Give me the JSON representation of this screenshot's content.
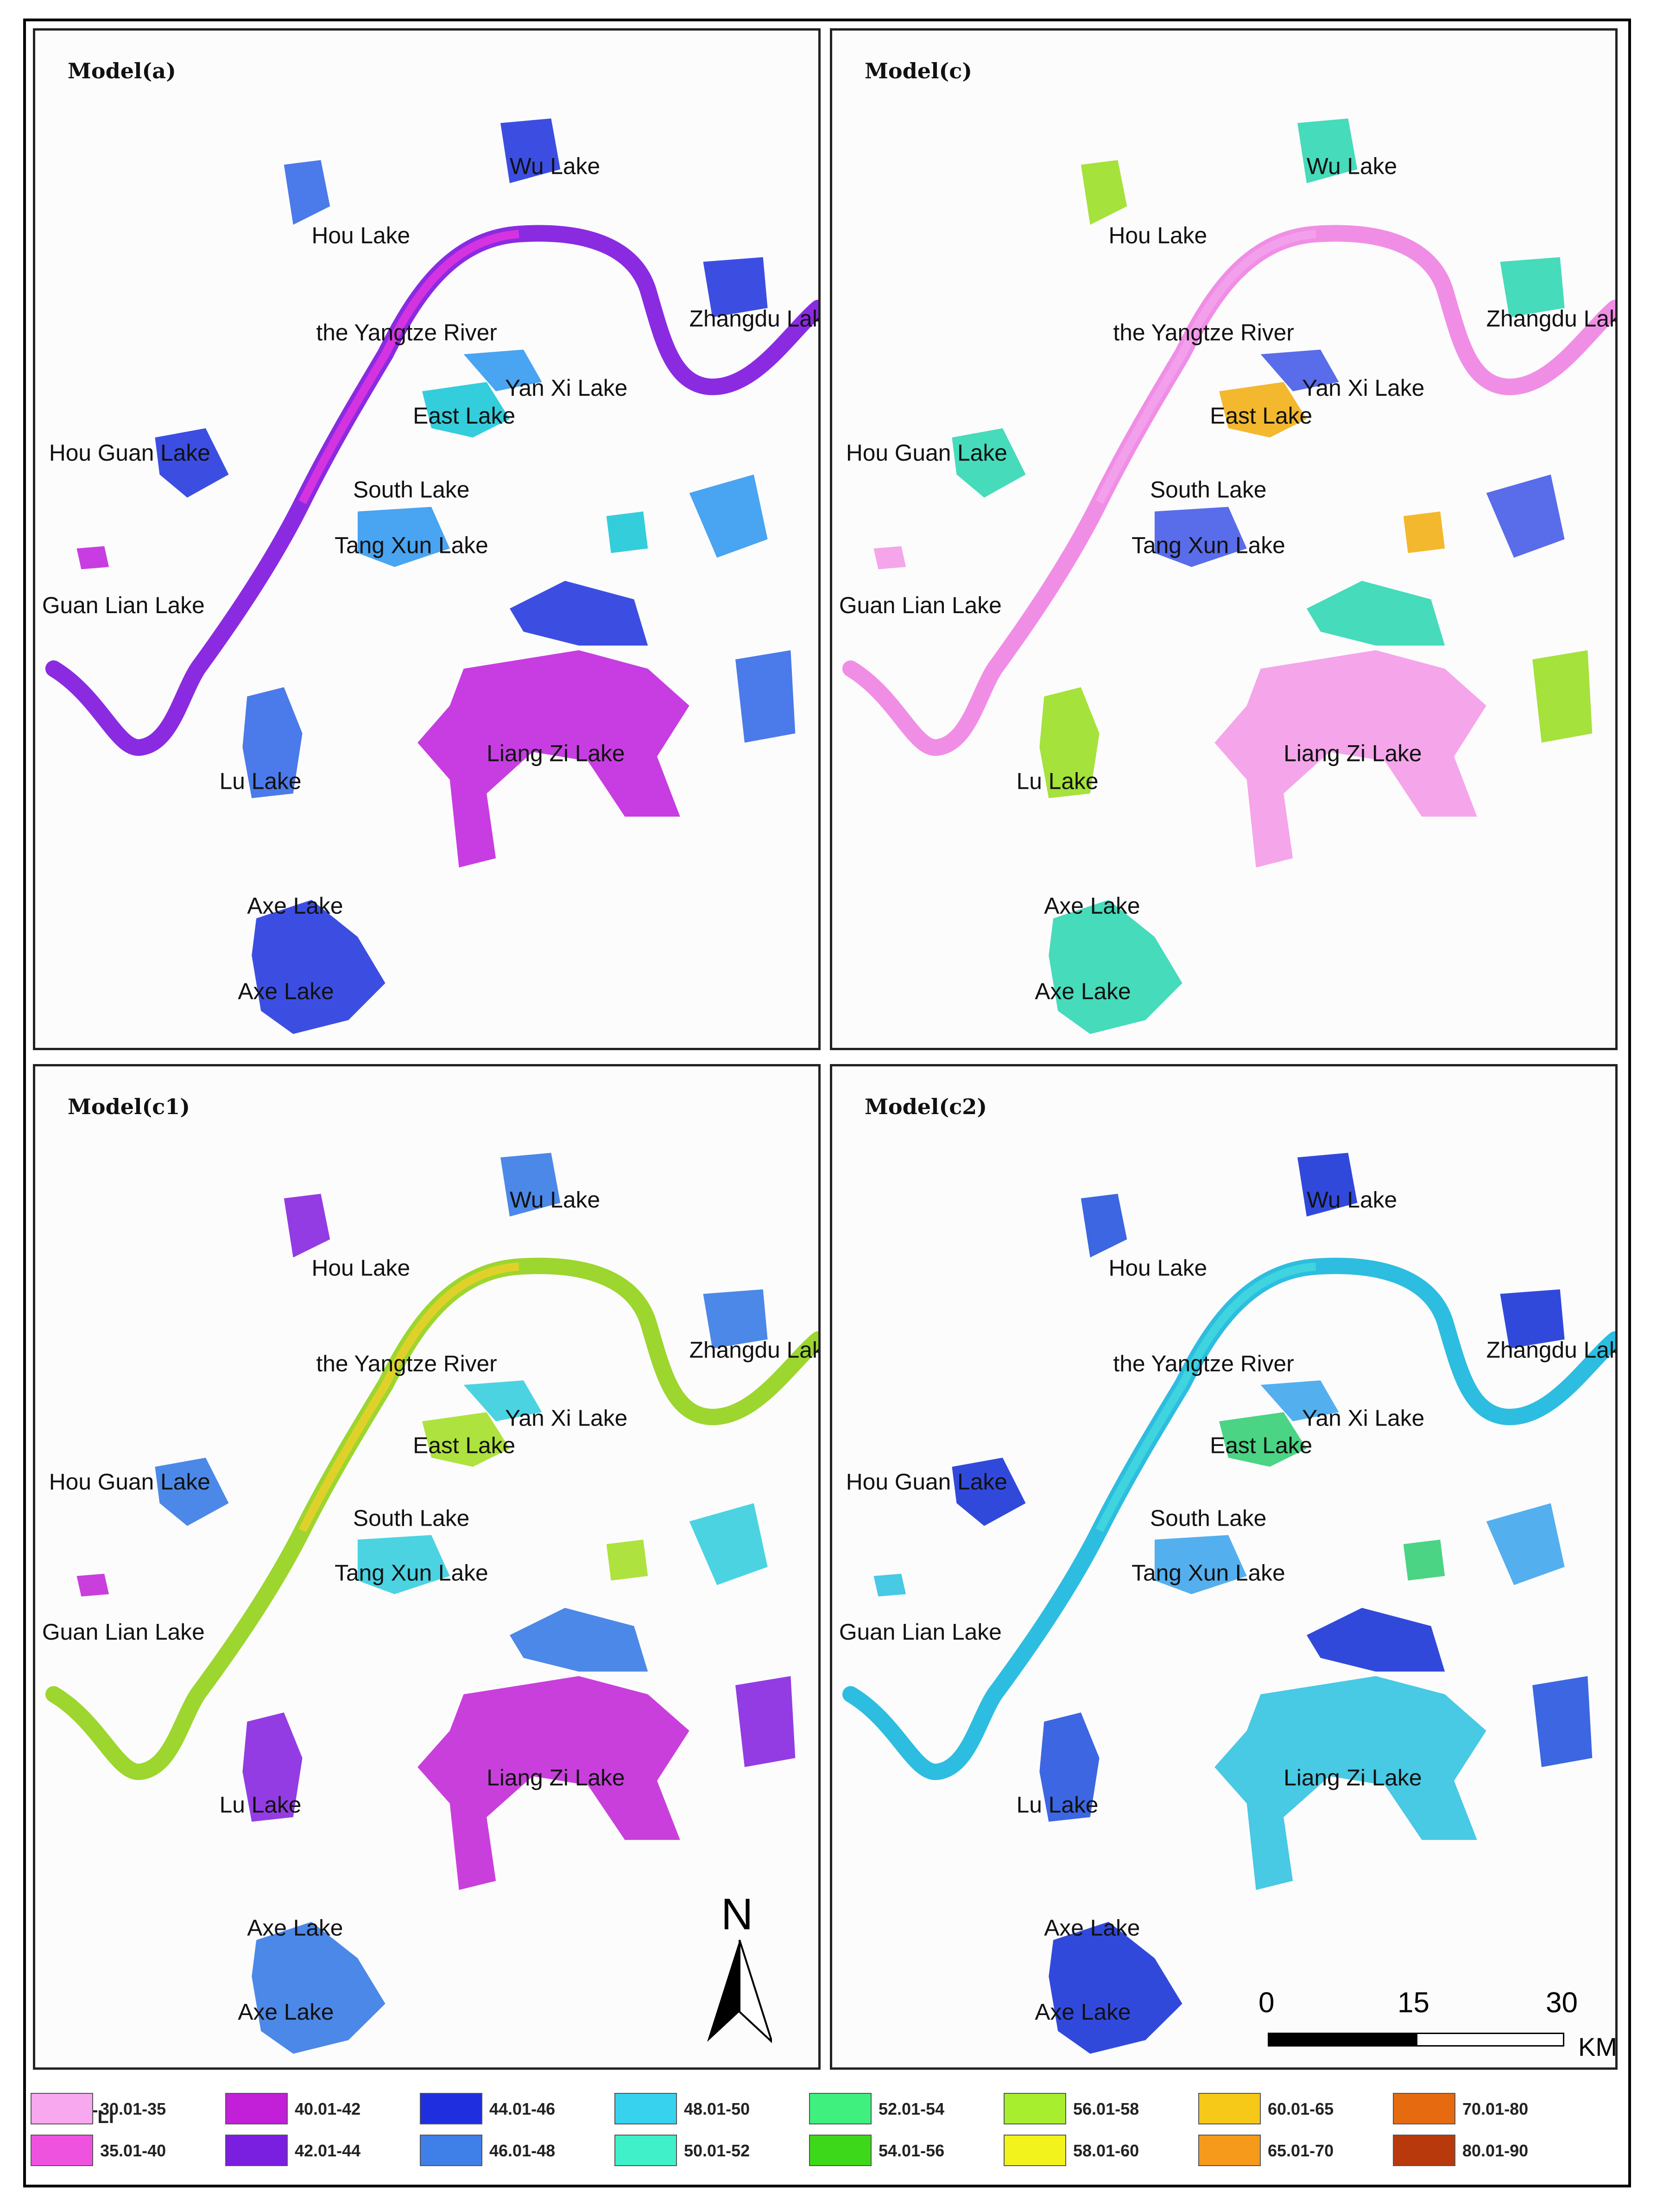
{
  "panels": [
    {
      "title": "Model(a)",
      "palette": {
        "river": "#8a2be2",
        "river2": "#d633e0",
        "lakeA": "#2b3fe0",
        "lakeB": "#3c6fe8",
        "lakeC": "#c22ce0",
        "lakeD": "#23c9d9",
        "lakeE": "#3a9cf0"
      }
    },
    {
      "title": "Model(c)",
      "palette": {
        "river": "#f08ee6",
        "river2": "#f3a0ec",
        "lakeA": "#36d8b4",
        "lakeB": "#9de02a",
        "lakeC": "#f49de8",
        "lakeD": "#f2b21c",
        "lakeE": "#4b60e8"
      }
    },
    {
      "title": "Model(c1)",
      "palette": {
        "river": "#9cd62e",
        "river2": "#e0d12a",
        "lakeA": "#3d7ee6",
        "lakeB": "#8a2be2",
        "lakeC": "#c42fd9",
        "lakeD": "#a7df2e",
        "lakeE": "#3ccfe0"
      }
    },
    {
      "title": "Model(c2)",
      "palette": {
        "river": "#2dbde0",
        "river2": "#3fd4de",
        "lakeA": "#1f3ad8",
        "lakeB": "#2b59e0",
        "lakeC": "#38c4e2",
        "lakeD": "#3bd07a",
        "lakeE": "#45a8ee"
      }
    }
  ],
  "place_labels": {
    "wu_lake": "Wu Lake",
    "hou_lake": "Hou Lake",
    "zhangdu_lake": "Zhangdu Lake",
    "yangtze_river": "the Yangtze River",
    "yan_xi_lake": "Yan Xi Lake",
    "east_lake": "East Lake",
    "hou_guan_lake": "Hou Guan Lake",
    "south_lake": "South Lake",
    "tang_xun_lake": "Tang Xun Lake",
    "guan_lian_lake": "Guan Lian Lake",
    "lu_lake": "Lu Lake",
    "liang_zi_lake": "Liang Zi Lake",
    "axe_lake": "Axe Lake"
  },
  "north_arrow": "N",
  "scale_bar": {
    "ticks": [
      "0",
      "15",
      "30"
    ],
    "unit": "KM"
  },
  "legend": {
    "title": "TLI",
    "items": [
      {
        "range": "30.01-35",
        "color": "#f7a8ee"
      },
      {
        "range": "35.01-40",
        "color": "#f052e0"
      },
      {
        "range": "40.01-42",
        "color": "#c21fd8"
      },
      {
        "range": "42.01-44",
        "color": "#7a1ee0"
      },
      {
        "range": "44.01-46",
        "color": "#1f2fe0"
      },
      {
        "range": "46.01-48",
        "color": "#3f7fe8"
      },
      {
        "range": "48.01-50",
        "color": "#36d2ee"
      },
      {
        "range": "50.01-52",
        "color": "#3ff0c8"
      },
      {
        "range": "52.01-54",
        "color": "#3ff07e"
      },
      {
        "range": "54.01-56",
        "color": "#3ed81a"
      },
      {
        "range": "56.01-58",
        "color": "#a6ee2e"
      },
      {
        "range": "58.01-60",
        "color": "#f2f21c"
      },
      {
        "range": "60.01-65",
        "color": "#f6c818"
      },
      {
        "range": "65.01-70",
        "color": "#f59a1a"
      },
      {
        "range": "70.01-80",
        "color": "#e66a10"
      },
      {
        "range": "80.01-90",
        "color": "#b83a0c"
      }
    ]
  }
}
